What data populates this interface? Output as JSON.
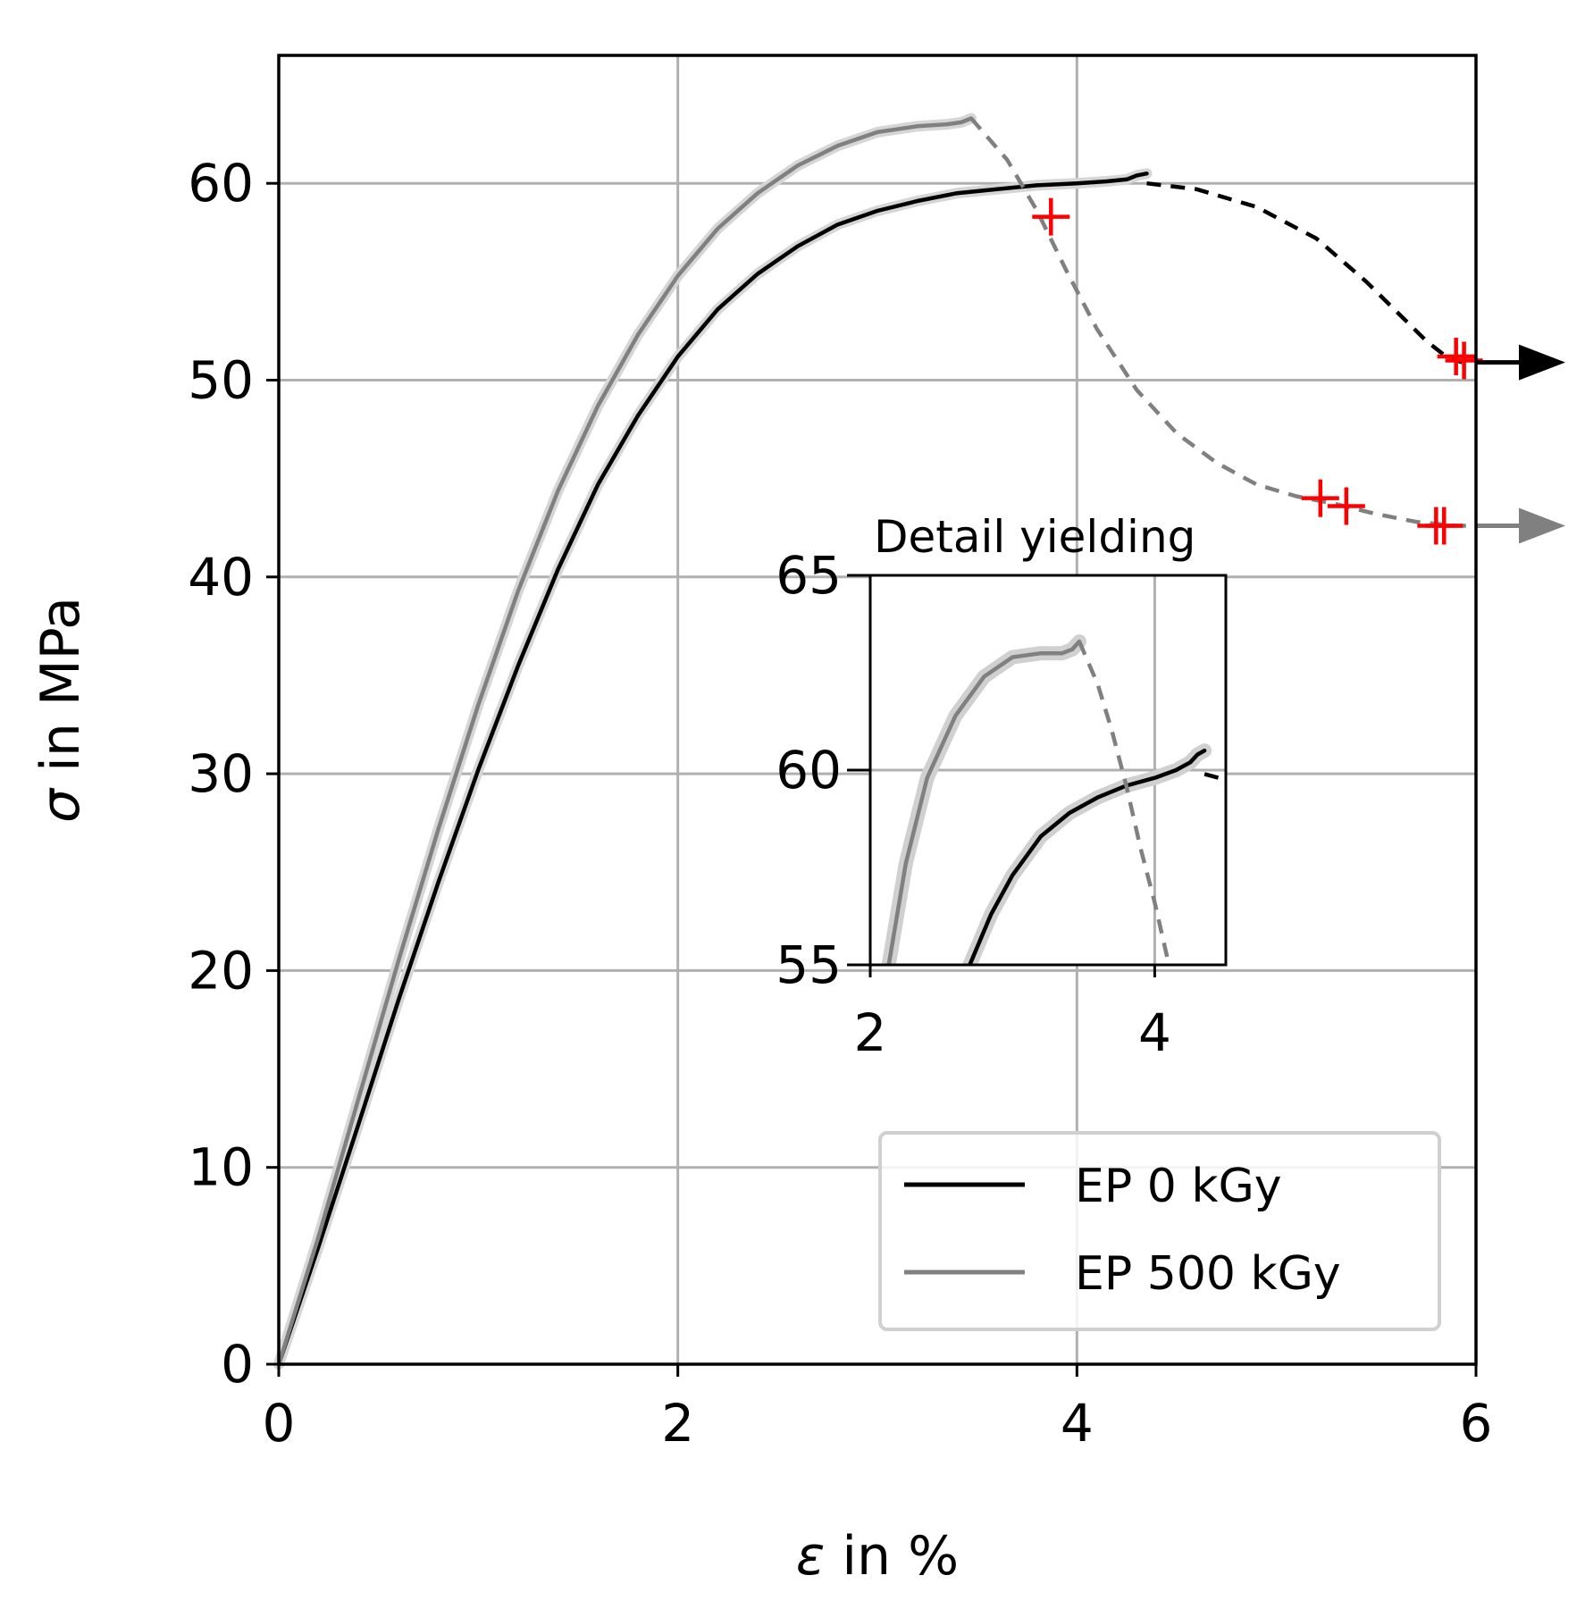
{
  "chart_data": [
    {
      "type": "line",
      "xlabel_symbol": "ε",
      "xlabel_text": " in %",
      "ylabel_symbol": "σ",
      "ylabel_text": " in MPa",
      "xlim": [
        0,
        6
      ],
      "ylim": [
        0,
        66.5
      ],
      "xticks": [
        0,
        2,
        4,
        6
      ],
      "yticks": [
        0,
        10,
        20,
        30,
        40,
        50,
        60
      ],
      "grid": true,
      "legend_position": "lower-right",
      "series": [
        {
          "name": "EP 0 kGy",
          "color": "#000000",
          "style": "solid",
          "x": [
            0,
            0.2,
            0.4,
            0.6,
            0.8,
            1.0,
            1.2,
            1.4,
            1.6,
            1.8,
            2.0,
            2.2,
            2.4,
            2.6,
            2.8,
            3.0,
            3.2,
            3.4,
            3.6,
            3.8,
            4.0,
            4.15,
            4.25,
            4.3,
            4.35
          ],
          "y": [
            0,
            6,
            12.2,
            18.5,
            24.5,
            30.2,
            35.5,
            40.4,
            44.7,
            48.2,
            51.2,
            53.6,
            55.4,
            56.8,
            57.9,
            58.6,
            59.1,
            59.5,
            59.7,
            59.9,
            60.0,
            60.1,
            60.2,
            60.4,
            60.5
          ]
        },
        {
          "name": "EP 500 kGy",
          "color": "#808080",
          "style": "solid",
          "x": [
            0,
            0.2,
            0.4,
            0.6,
            0.8,
            1.0,
            1.2,
            1.4,
            1.6,
            1.8,
            2.0,
            2.2,
            2.4,
            2.6,
            2.8,
            3.0,
            3.2,
            3.35,
            3.42,
            3.47
          ],
          "y": [
            0,
            6.5,
            13.5,
            20.5,
            27.2,
            33.5,
            39.3,
            44.4,
            48.7,
            52.3,
            55.3,
            57.7,
            59.5,
            60.9,
            61.9,
            62.6,
            62.9,
            63.0,
            63.1,
            63.3
          ]
        },
        {
          "name": "",
          "color": "#000000",
          "style": "dashed",
          "x": [
            4.35,
            4.6,
            4.9,
            5.2,
            5.45,
            5.6,
            5.75,
            5.85,
            5.93
          ],
          "y": [
            60.0,
            59.7,
            58.8,
            57.2,
            55.0,
            53.5,
            52.0,
            51.2,
            50.9
          ]
        },
        {
          "name": "",
          "color": "#808080",
          "style": "dashed",
          "x": [
            3.47,
            3.65,
            3.8,
            3.95,
            4.1,
            4.3,
            4.5,
            4.7,
            4.9,
            5.1,
            5.3,
            5.5,
            5.7,
            5.9,
            5.95
          ],
          "y": [
            63.3,
            61.2,
            58.6,
            55.5,
            52.6,
            49.5,
            47.3,
            45.8,
            44.7,
            44.1,
            43.7,
            43.2,
            42.8,
            42.6,
            42.6
          ]
        }
      ],
      "markers": {
        "color": "#ff0000",
        "shape": "plus",
        "points": [
          {
            "x": 3.87,
            "y": 58.3
          },
          {
            "x": 5.22,
            "y": 44.0
          },
          {
            "x": 5.35,
            "y": 43.6
          },
          {
            "x": 5.8,
            "y": 42.6
          },
          {
            "x": 5.84,
            "y": 42.6
          },
          {
            "x": 5.9,
            "y": 51.2
          },
          {
            "x": 5.94,
            "y": 51.0
          }
        ]
      },
      "arrows": [
        {
          "y": 50.9,
          "color": "#000000"
        },
        {
          "y": 42.6,
          "color": "#808080"
        }
      ]
    },
    {
      "type": "line",
      "title": "Detail yielding",
      "xlim": [
        2,
        4.5
      ],
      "ylim": [
        55,
        65
      ],
      "xticks": [
        2,
        4
      ],
      "yticks": [
        55,
        60,
        65
      ],
      "grid": true,
      "series": [
        {
          "color": "#000000",
          "style": "solid",
          "x": [
            2.7,
            2.85,
            3.0,
            3.2,
            3.4,
            3.6,
            3.8,
            4.0,
            4.15,
            4.25,
            4.3,
            4.35
          ],
          "y": [
            55.0,
            56.3,
            57.3,
            58.3,
            58.9,
            59.3,
            59.6,
            59.8,
            60.0,
            60.2,
            60.4,
            60.5
          ]
        },
        {
          "color": "#808080",
          "style": "solid",
          "x": [
            2.13,
            2.25,
            2.4,
            2.6,
            2.8,
            3.0,
            3.2,
            3.35,
            3.42,
            3.47
          ],
          "y": [
            55.0,
            57.6,
            59.8,
            61.4,
            62.4,
            62.9,
            63.0,
            63.0,
            63.1,
            63.3
          ]
        },
        {
          "color": "#000000",
          "style": "dashed",
          "x": [
            4.35,
            4.45,
            4.5
          ],
          "y": [
            59.9,
            59.8,
            59.7
          ]
        },
        {
          "color": "#808080",
          "style": "dashed",
          "x": [
            3.47,
            3.6,
            3.7,
            3.8,
            3.9,
            4.0,
            4.1
          ],
          "y": [
            63.3,
            62.2,
            61.0,
            59.6,
            58.0,
            56.6,
            55.0
          ]
        }
      ]
    }
  ]
}
